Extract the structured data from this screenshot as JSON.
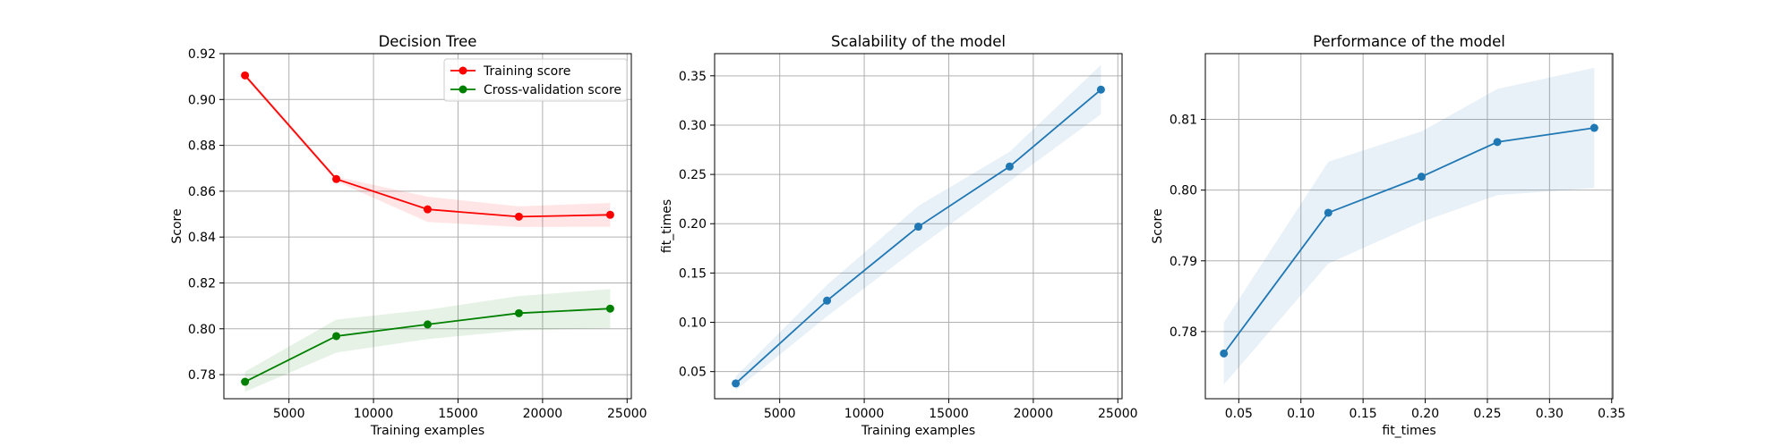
{
  "chart_data": [
    {
      "type": "line",
      "title": "Decision Tree",
      "xlabel": "Training examples",
      "ylabel": "Score",
      "xlim": [
        1150,
        25250
      ],
      "ylim": [
        0.7695,
        0.92
      ],
      "xticks": [
        5000,
        10000,
        15000,
        20000,
        25000
      ],
      "xtick_labels": [
        "5000",
        "10000",
        "15000",
        "20000",
        "25000"
      ],
      "yticks": [
        0.78,
        0.8,
        0.82,
        0.84,
        0.86,
        0.88,
        0.9,
        0.92
      ],
      "ytick_labels": [
        "0.78",
        "0.80",
        "0.82",
        "0.84",
        "0.86",
        "0.88",
        "0.90",
        "0.92"
      ],
      "grid": true,
      "legend_position": "top-right",
      "x": [
        2400,
        7800,
        13200,
        18600,
        24000
      ],
      "series": [
        {
          "name": "Training score",
          "color": "#ff0000",
          "band_color": "#ff0000",
          "marker": "circle",
          "values": [
            0.9105,
            0.8653,
            0.8521,
            0.8489,
            0.8497
          ],
          "band_low": [
            0.9095,
            0.8643,
            0.8466,
            0.8444,
            0.8445
          ],
          "band_high": [
            0.9115,
            0.8663,
            0.8576,
            0.8534,
            0.8549
          ]
        },
        {
          "name": "Cross-validation score",
          "color": "#008000",
          "band_color": "#008000",
          "marker": "circle",
          "values": [
            0.7769,
            0.7968,
            0.8019,
            0.8068,
            0.8088
          ],
          "band_low": [
            0.7725,
            0.7896,
            0.7955,
            0.7993,
            0.8003
          ],
          "band_high": [
            0.7813,
            0.804,
            0.8083,
            0.8143,
            0.8173
          ]
        }
      ]
    },
    {
      "type": "line",
      "title": "Scalability of the model",
      "xlabel": "Training examples",
      "ylabel": "fit_times",
      "xlim": [
        1150,
        25250
      ],
      "ylim": [
        0.0225,
        0.3725
      ],
      "xticks": [
        5000,
        10000,
        15000,
        20000,
        25000
      ],
      "xtick_labels": [
        "5000",
        "10000",
        "15000",
        "20000",
        "25000"
      ],
      "yticks": [
        0.05,
        0.1,
        0.15,
        0.2,
        0.25,
        0.3,
        0.35
      ],
      "ytick_labels": [
        "0.05",
        "0.10",
        "0.15",
        "0.20",
        "0.25",
        "0.30",
        "0.35"
      ],
      "grid": true,
      "x": [
        2400,
        7800,
        13200,
        18600,
        24000
      ],
      "series": [
        {
          "color": "#1f77b4",
          "band_color": "#1f77b4",
          "marker": "circle",
          "values": [
            0.038,
            0.122,
            0.197,
            0.258,
            0.336
          ],
          "band_low": [
            0.031,
            0.106,
            0.176,
            0.243,
            0.311
          ],
          "band_high": [
            0.045,
            0.138,
            0.218,
            0.273,
            0.361
          ]
        }
      ]
    },
    {
      "type": "line",
      "title": "Performance of the model",
      "xlabel": "fit_times",
      "ylabel": "Score",
      "xlim": [
        0.0231,
        0.3509
      ],
      "ylim": [
        0.7705,
        0.8193
      ],
      "xticks": [
        0.05,
        0.1,
        0.15,
        0.2,
        0.25,
        0.3,
        0.35
      ],
      "xtick_labels": [
        "0.05",
        "0.10",
        "0.15",
        "0.20",
        "0.25",
        "0.30",
        "0.35"
      ],
      "yticks": [
        0.78,
        0.79,
        0.8,
        0.81
      ],
      "ytick_labels": [
        "0.78",
        "0.79",
        "0.80",
        "0.81"
      ],
      "grid": true,
      "x": [
        0.038,
        0.122,
        0.197,
        0.258,
        0.336
      ],
      "series": [
        {
          "color": "#1f77b4",
          "band_color": "#1f77b4",
          "marker": "circle",
          "values": [
            0.7769,
            0.7968,
            0.8019,
            0.8068,
            0.8088
          ],
          "band_low": [
            0.7725,
            0.7896,
            0.7955,
            0.7993,
            0.8003
          ],
          "band_high": [
            0.7813,
            0.804,
            0.8083,
            0.8143,
            0.8173
          ]
        }
      ]
    }
  ]
}
